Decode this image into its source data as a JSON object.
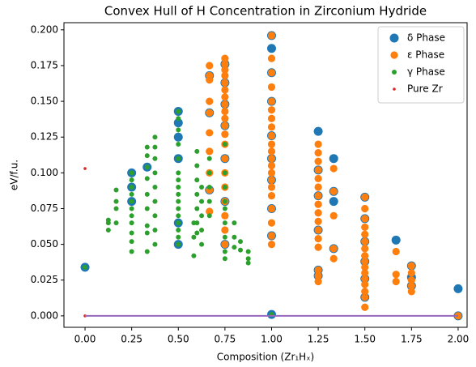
{
  "chart_data": {
    "type": "scatter",
    "title": "Convex Hull of H Concentration in Zirconium Hydride",
    "xlabel": "Composition (Zr₁Hₓ)",
    "ylabel": "eV/f.u.",
    "xlim": [
      -0.113,
      2.048
    ],
    "ylim": [
      -0.008,
      0.205
    ],
    "xticks": [
      {
        "value": 0,
        "label": "0.00"
      },
      {
        "value": 0.25,
        "label": "0.25"
      },
      {
        "value": 0.5,
        "label": "0.50"
      },
      {
        "value": 0.75,
        "label": "0.75"
      },
      {
        "value": 1,
        "label": "1.00"
      },
      {
        "value": 1.25,
        "label": "1.25"
      },
      {
        "value": 1.5,
        "label": "1.50"
      },
      {
        "value": 1.75,
        "label": "1.75"
      },
      {
        "value": 2,
        "label": "2.00"
      }
    ],
    "yticks": [
      {
        "value": 0,
        "label": "0.000"
      },
      {
        "value": 0.025,
        "label": "0.025"
      },
      {
        "value": 0.05,
        "label": "0.050"
      },
      {
        "value": 0.075,
        "label": "0.075"
      },
      {
        "value": 0.1,
        "label": "0.100"
      },
      {
        "value": 0.125,
        "label": "0.125"
      },
      {
        "value": 0.15,
        "label": "0.150"
      },
      {
        "value": 0.175,
        "label": "0.175"
      },
      {
        "value": 0.2,
        "label": "0.200"
      }
    ],
    "legend": "upper right",
    "hull": {
      "x": [
        0,
        2
      ],
      "y": [
        0,
        0
      ],
      "color": "#9467bd"
    },
    "series": [
      {
        "name": "δ Phase",
        "color": "#1f77b4",
        "x": [
          0,
          1,
          1,
          1.25,
          1.333,
          1.333,
          1.667,
          1.75,
          2,
          0.25,
          0.25,
          0.25,
          0.333,
          0.5,
          0.5,
          0.5,
          0.5,
          0.5,
          0.5,
          0.667,
          0.667,
          0.667,
          0.75,
          0.75,
          0.75,
          0.75,
          0.75,
          0.75,
          0.75,
          1,
          1,
          1,
          1,
          1,
          1,
          1,
          1,
          1.25,
          1.25,
          1.25,
          1.25,
          1.25,
          1.333,
          1.333,
          1.5,
          1.5,
          1.5,
          1.5,
          1.5,
          1.5,
          1.75,
          1.75,
          2
        ],
        "y": [
          0.034,
          0.187,
          0.001,
          0.129,
          0.11,
          0.08,
          0.053,
          0.027,
          0.019,
          0.1,
          0.09,
          0.08,
          0.104,
          0.143,
          0.135,
          0.125,
          0.11,
          0.065,
          0.05,
          0.168,
          0.142,
          0.088,
          0.176,
          0.163,
          0.148,
          0.133,
          0.11,
          0.08,
          0.05,
          0.196,
          0.17,
          0.15,
          0.126,
          0.11,
          0.095,
          0.075,
          0.056,
          0.102,
          0.084,
          0.06,
          0.032,
          0.028,
          0.087,
          0.047,
          0.083,
          0.068,
          0.052,
          0.038,
          0.026,
          0.013,
          0.035,
          0.021,
          0.0
        ]
      },
      {
        "name": "ε Phase",
        "color": "#ff7f0e",
        "x": [
          0.667,
          0.667,
          0.667,
          0.667,
          0.667,
          0.667,
          0.667,
          0.667,
          0.667,
          0.667,
          0.75,
          0.75,
          0.75,
          0.75,
          0.75,
          0.75,
          0.75,
          0.75,
          0.75,
          0.75,
          0.75,
          0.75,
          0.75,
          0.75,
          0.75,
          0.75,
          0.75,
          0.75,
          0.75,
          0.75,
          1,
          1,
          1,
          1,
          1,
          1,
          1,
          1,
          1,
          1,
          1,
          1,
          1,
          1,
          1,
          1,
          1,
          1,
          1,
          1,
          1,
          1.25,
          1.25,
          1.25,
          1.25,
          1.25,
          1.25,
          1.25,
          1.25,
          1.25,
          1.25,
          1.25,
          1.25,
          1.25,
          1.25,
          1.25,
          1.25,
          1.333,
          1.333,
          1.333,
          1.333,
          1.333,
          1.5,
          1.5,
          1.5,
          1.5,
          1.5,
          1.5,
          1.5,
          1.5,
          1.5,
          1.5,
          1.5,
          1.5,
          1.5,
          1.5,
          1.5,
          1.5,
          1.667,
          1.667,
          1.667,
          1.75,
          1.75,
          1.75,
          1.75,
          1.75,
          2
        ],
        "y": [
          0.175,
          0.168,
          0.165,
          0.15,
          0.142,
          0.128,
          0.115,
          0.1,
          0.088,
          0.073,
          0.18,
          0.176,
          0.172,
          0.168,
          0.163,
          0.158,
          0.153,
          0.148,
          0.143,
          0.138,
          0.133,
          0.127,
          0.12,
          0.11,
          0.1,
          0.09,
          0.08,
          0.07,
          0.06,
          0.05,
          0.196,
          0.18,
          0.17,
          0.16,
          0.15,
          0.144,
          0.138,
          0.132,
          0.126,
          0.12,
          0.115,
          0.11,
          0.105,
          0.1,
          0.095,
          0.09,
          0.084,
          0.075,
          0.065,
          0.056,
          0.05,
          0.12,
          0.114,
          0.108,
          0.102,
          0.096,
          0.09,
          0.084,
          0.078,
          0.072,
          0.066,
          0.06,
          0.054,
          0.048,
          0.032,
          0.028,
          0.024,
          0.103,
          0.087,
          0.07,
          0.047,
          0.04,
          0.083,
          0.075,
          0.068,
          0.062,
          0.057,
          0.052,
          0.047,
          0.042,
          0.038,
          0.034,
          0.03,
          0.026,
          0.022,
          0.017,
          0.013,
          0.006,
          0.045,
          0.029,
          0.024,
          0.035,
          0.03,
          0.025,
          0.021,
          0.017,
          0.0
        ]
      },
      {
        "name": "γ Phase",
        "color": "#2ca02c",
        "x": [
          0,
          0.125,
          0.125,
          0.125,
          0.167,
          0.167,
          0.167,
          0.167,
          0.25,
          0.25,
          0.25,
          0.25,
          0.25,
          0.25,
          0.25,
          0.25,
          0.25,
          0.25,
          0.25,
          0.333,
          0.333,
          0.333,
          0.333,
          0.333,
          0.333,
          0.333,
          0.333,
          0.333,
          0.375,
          0.375,
          0.375,
          0.375,
          0.375,
          0.375,
          0.375,
          0.375,
          0.375,
          0.5,
          0.5,
          0.5,
          0.5,
          0.5,
          0.5,
          0.5,
          0.5,
          0.5,
          0.5,
          0.5,
          0.5,
          0.5,
          0.5,
          0.5,
          0.5,
          0.583,
          0.583,
          0.583,
          0.6,
          0.6,
          0.6,
          0.6,
          0.6,
          0.6,
          0.6,
          0.625,
          0.625,
          0.625,
          0.625,
          0.625,
          0.667,
          0.667,
          0.667,
          0.667,
          0.667,
          0.75,
          0.75,
          0.75,
          0.75,
          0.75,
          0.75,
          0.75,
          0.75,
          0.75,
          0.8,
          0.8,
          0.8,
          0.833,
          0.833,
          0.875,
          0.875,
          0.875,
          1
        ],
        "y": [
          0.034,
          0.06,
          0.065,
          0.067,
          0.065,
          0.075,
          0.08,
          0.088,
          0.1,
          0.095,
          0.09,
          0.085,
          0.08,
          0.075,
          0.07,
          0.065,
          0.058,
          0.052,
          0.045,
          0.118,
          0.112,
          0.104,
          0.096,
          0.085,
          0.075,
          0.063,
          0.058,
          0.045,
          0.125,
          0.118,
          0.11,
          0.1,
          0.09,
          0.08,
          0.07,
          0.06,
          0.05,
          0.143,
          0.138,
          0.13,
          0.12,
          0.11,
          0.1,
          0.095,
          0.09,
          0.085,
          0.08,
          0.075,
          0.07,
          0.065,
          0.06,
          0.055,
          0.05,
          0.042,
          0.055,
          0.065,
          0.115,
          0.105,
          0.095,
          0.085,
          0.075,
          0.065,
          0.058,
          0.09,
          0.08,
          0.07,
          0.06,
          0.05,
          0.11,
          0.1,
          0.09,
          0.08,
          0.07,
          0.12,
          0.1,
          0.09,
          0.08,
          0.075,
          0.065,
          0.055,
          0.045,
          0.04,
          0.065,
          0.055,
          0.048,
          0.052,
          0.046,
          0.045,
          0.04,
          0.037,
          0.001
        ]
      },
      {
        "name": "Pure Zr",
        "color": "#d62728",
        "x": [
          0,
          0
        ],
        "y": [
          0.103,
          0.0
        ]
      }
    ]
  }
}
